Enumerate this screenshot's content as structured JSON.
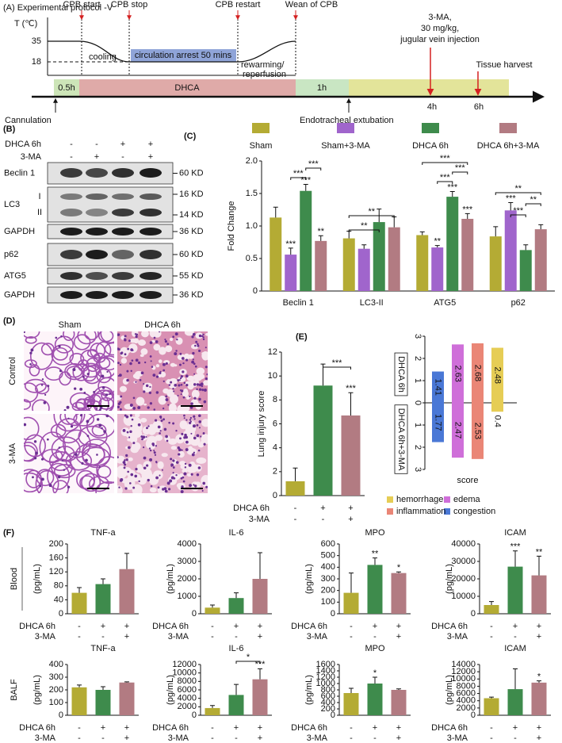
{
  "figure": {
    "protocol": {
      "title": "(A) Experimental protocol -V",
      "y_axis": "T (℃)",
      "temps": [
        35,
        18
      ],
      "events": [
        "CPB start",
        "CPB stop",
        "CPB restart",
        "Wean of CPB"
      ],
      "phases": [
        "cooling",
        "circulation arrest 50 mins",
        "rewarming/",
        "reperfusion"
      ],
      "timeline": [
        "0.5h",
        "DHCA",
        "1h"
      ],
      "times": [
        "4h",
        "6h"
      ],
      "injection": [
        "3-MA,",
        "30  mg/kg,",
        "jugular vein injection"
      ],
      "harvest": "Tissue harvest",
      "cannulation": "Cannulation",
      "extubation": "Endotracheal extubation"
    },
    "blot": {
      "label": "(B)",
      "conditions": [
        {
          "name": "DHCA 6h",
          "signs": [
            "-",
            "-",
            "+",
            "+"
          ]
        },
        {
          "name": "3-MA",
          "signs": [
            "-",
            "+",
            "-",
            "+"
          ]
        }
      ],
      "rows": [
        {
          "protein": "Beclin 1",
          "sizes": [
            "60 KD"
          ]
        },
        {
          "protein": "LC3",
          "bands": [
            "I",
            "II"
          ],
          "sizes": [
            "16 KD",
            "14 KD"
          ]
        },
        {
          "protein": "GAPDH",
          "sizes": [
            "36 KD"
          ]
        },
        {
          "protein": "p62",
          "sizes": [
            "60 KD"
          ]
        },
        {
          "protein": "ATG5",
          "sizes": [
            "55 KD"
          ]
        },
        {
          "protein": "GAPDH",
          "sizes": [
            "36 KD"
          ]
        }
      ]
    },
    "histology": {
      "label": "(D)",
      "columns": [
        "Sham",
        "DHCA 6h"
      ],
      "rows": [
        "Control",
        "3-MA"
      ]
    },
    "cytokines": {
      "label": "(F)",
      "rows": [
        "Blood",
        "BALF"
      ]
    }
  },
  "chart_data": [
    {
      "type": "grouped-bar",
      "label": "(C)",
      "ylabel": "Fold Change",
      "categories": [
        "Beclin 1",
        "LC3-II",
        "ATG5",
        "p62"
      ],
      "series": [
        {
          "name": "Sham",
          "color": "#b4ab34",
          "values": [
            1.13,
            0.81,
            0.86,
            0.84
          ],
          "errors": [
            0.16,
            0.11,
            0.05,
            0.15
          ]
        },
        {
          "name": "Sham+3-MA",
          "color": "#a065cc",
          "values": [
            0.56,
            0.65,
            0.67,
            1.24
          ],
          "errors": [
            0.1,
            0.06,
            0.03,
            0.12
          ],
          "stars": [
            "***",
            null,
            "**",
            "***"
          ]
        },
        {
          "name": "DHCA 6h",
          "color": "#3e8b4c",
          "values": [
            1.54,
            1.06,
            1.45,
            0.63
          ],
          "errors": [
            0.1,
            0.2,
            0.08,
            0.08
          ],
          "stars": [
            "***",
            null,
            "***",
            null
          ]
        },
        {
          "name": "DHCA 6h+3-MA",
          "color": "#b27b82",
          "values": [
            0.77,
            0.98,
            1.11,
            0.95
          ],
          "errors": [
            0.08,
            0.16,
            0.08,
            0.07
          ],
          "stars": [
            "**",
            null,
            "***",
            null
          ]
        }
      ],
      "ylim": [
        0,
        2
      ],
      "yticks": [
        0,
        0.5,
        {
          "value": 1,
          "label": "1.0"
        },
        1.5,
        {
          "value": 2,
          "label": "2.0"
        }
      ],
      "brackets": [
        "***",
        "***",
        "**",
        "**",
        "***",
        "***",
        "***",
        "**",
        "**",
        "***"
      ]
    },
    {
      "type": "bar",
      "label": "(E)",
      "ylabel": "Lung injury score",
      "values": [
        1.2,
        9.2,
        6.7
      ],
      "errors": [
        1.1,
        1.8,
        1.9
      ],
      "colors": [
        "#b4ab34",
        "#3e8b4c",
        "#b27b82"
      ],
      "stars": [
        null,
        null,
        "***"
      ],
      "conditions": [
        {
          "name": "DHCA 6h",
          "signs": [
            "-",
            "+",
            "+"
          ]
        },
        {
          "name": "3-MA",
          "signs": [
            "-",
            "-",
            "+"
          ]
        }
      ],
      "ylim": [
        0,
        12
      ],
      "yticks": [
        0,
        2,
        4,
        6,
        8,
        10,
        12
      ],
      "brackets": [
        "***"
      ]
    },
    {
      "type": "diverging-bar",
      "xlabel": "score",
      "categories": [
        "congestion",
        "edema",
        "inflammation",
        "hemorrhage"
      ],
      "colors": [
        "#4a78d6",
        "#cf6fd9",
        "#ea8676",
        "#e6cd55"
      ],
      "series": [
        {
          "name": "DHCA 6h",
          "values": [
            1.41,
            2.63,
            2.68,
            2.48
          ]
        },
        {
          "name": "DHCA 6h+3-MA",
          "values": [
            -1.77,
            -2.47,
            -2.53,
            -0.4
          ],
          "value_labels": [
            "1.77",
            "2.47",
            "2.53",
            "0.4"
          ]
        }
      ],
      "ylim": [
        -3,
        3
      ],
      "yticks": [
        {
          "value": -3,
          "label": "3"
        },
        {
          "value": -2,
          "label": "2"
        },
        {
          "value": -1,
          "label": "1"
        },
        0,
        1,
        2,
        3
      ]
    },
    {
      "type": "bar",
      "title": "TNF-a",
      "ylabel": "(pg/mL)",
      "values": [
        60,
        85,
        128
      ],
      "errors": [
        15,
        15,
        45
      ],
      "colors": [
        "#b4ab34",
        "#3e8b4c",
        "#b27b82"
      ],
      "conditions": [
        {
          "name": "DHCA 6h",
          "signs": [
            "-",
            "+",
            "+"
          ]
        },
        {
          "name": "3-MA",
          "signs": [
            "-",
            "-",
            "+"
          ]
        }
      ],
      "ylim": [
        0,
        200
      ],
      "yticks": [
        0,
        40,
        80,
        120,
        160,
        200
      ]
    },
    {
      "type": "bar",
      "title": "IL-6",
      "ylabel": "(pg/mL)",
      "values": [
        350,
        900,
        2000
      ],
      "errors": [
        150,
        300,
        1500
      ],
      "colors": [
        "#b4ab34",
        "#3e8b4c",
        "#b27b82"
      ],
      "conditions": [
        {
          "name": "DHCA 6h",
          "signs": [
            "-",
            "+",
            "+"
          ]
        },
        {
          "name": "3-MA",
          "signs": [
            "-",
            "-",
            "+"
          ]
        }
      ],
      "ylim": [
        0,
        4000
      ],
      "yticks": [
        0,
        1000,
        2000,
        3000,
        4000
      ]
    },
    {
      "type": "bar",
      "title": "MPO",
      "ylabel": "(pg/mL)",
      "values": [
        180,
        420,
        350
      ],
      "errors": [
        170,
        60,
        10
      ],
      "colors": [
        "#b4ab34",
        "#3e8b4c",
        "#b27b82"
      ],
      "stars": [
        null,
        "**",
        "*"
      ],
      "conditions": [
        {
          "name": "DHCA 6h",
          "signs": [
            "-",
            "+",
            "+"
          ]
        },
        {
          "name": "3-MA",
          "signs": [
            "-",
            "-",
            "+"
          ]
        }
      ],
      "ylim": [
        0,
        600
      ],
      "yticks": [
        0,
        100,
        200,
        300,
        400,
        500,
        600
      ]
    },
    {
      "type": "bar",
      "title": "ICAM",
      "ylabel": "(pg/mL)",
      "values": [
        5000,
        27000,
        22000
      ],
      "errors": [
        2000,
        9000,
        11000
      ],
      "colors": [
        "#b4ab34",
        "#3e8b4c",
        "#b27b82"
      ],
      "stars": [
        null,
        "***",
        "**"
      ],
      "conditions": [
        {
          "name": "DHCA 6h",
          "signs": [
            "-",
            "+",
            "+"
          ]
        },
        {
          "name": "3-MA",
          "signs": [
            "-",
            "-",
            "+"
          ]
        }
      ],
      "ylim": [
        0,
        40000
      ],
      "yticks": [
        0,
        10000,
        20000,
        30000,
        40000
      ]
    },
    {
      "type": "bar",
      "title": "TNF-a",
      "ylabel": "(pg/mL)",
      "values": [
        220,
        200,
        258
      ],
      "errors": [
        18,
        25,
        5
      ],
      "colors": [
        "#b4ab34",
        "#3e8b4c",
        "#b27b82"
      ],
      "conditions": [
        {
          "name": "DHCA 6h",
          "signs": [
            "-",
            "+",
            "+"
          ]
        },
        {
          "name": "3-MA",
          "signs": [
            "-",
            "-",
            "+"
          ]
        }
      ],
      "ylim": [
        0,
        400
      ],
      "yticks": [
        0,
        100,
        200,
        300,
        400
      ]
    },
    {
      "type": "bar",
      "title": "IL-6",
      "ylabel": "(pg/mL)",
      "values": [
        1700,
        4800,
        8500
      ],
      "errors": [
        600,
        2500,
        2500
      ],
      "colors": [
        "#b4ab34",
        "#3e8b4c",
        "#b27b82"
      ],
      "stars": [
        null,
        null,
        "***"
      ],
      "conditions": [
        {
          "name": "DHCA 6h",
          "signs": [
            "-",
            "+",
            "+"
          ]
        },
        {
          "name": "3-MA",
          "signs": [
            "-",
            "-",
            "+"
          ]
        }
      ],
      "ylim": [
        0,
        12000
      ],
      "yticks": [
        0,
        2000,
        4000,
        6000,
        8000,
        10000,
        12000
      ],
      "brackets": [
        "*"
      ]
    },
    {
      "type": "bar",
      "title": "MPO",
      "ylabel": "(pg/mL)",
      "values": [
        700,
        1000,
        800
      ],
      "errors": [
        150,
        200,
        30
      ],
      "colors": [
        "#b4ab34",
        "#3e8b4c",
        "#b27b82"
      ],
      "stars": [
        null,
        "*",
        null
      ],
      "conditions": [
        {
          "name": "DHCA 6h",
          "signs": [
            "-",
            "+",
            "+"
          ]
        },
        {
          "name": "3-MA",
          "signs": [
            "-",
            "-",
            "+"
          ]
        }
      ],
      "ylim": [
        0,
        1600
      ],
      "yticks": [
        0,
        200,
        400,
        600,
        800,
        1000,
        1200,
        1400,
        1600
      ]
    },
    {
      "type": "bar",
      "title": "ICAM",
      "ylabel": "(pg/mL)",
      "values": [
        4700,
        7200,
        9000
      ],
      "errors": [
        300,
        5600,
        500
      ],
      "colors": [
        "#b4ab34",
        "#3e8b4c",
        "#b27b82"
      ],
      "stars": [
        null,
        null,
        "*"
      ],
      "conditions": [
        {
          "name": "DHCA 6h",
          "signs": [
            "-",
            "+",
            "+"
          ]
        },
        {
          "name": "3-MA",
          "signs": [
            "-",
            "-",
            "+"
          ]
        }
      ],
      "ylim": [
        0,
        14000
      ],
      "yticks": [
        0,
        2000,
        4000,
        6000,
        8000,
        10000,
        12000,
        14000
      ]
    }
  ]
}
